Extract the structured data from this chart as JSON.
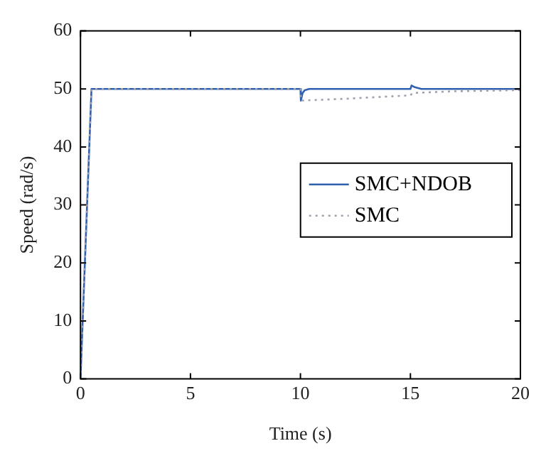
{
  "chart_data": {
    "type": "line",
    "xlabel": "Time (s)",
    "ylabel": "Speed (rad/s)",
    "xlim": [
      0,
      20
    ],
    "xticks": [
      0,
      5,
      10,
      15,
      20
    ],
    "ylim": [
      0,
      60
    ],
    "yticks": [
      0,
      10,
      20,
      30,
      40,
      50,
      60
    ],
    "grid": false,
    "legend": "right",
    "marker": "none",
    "series": [
      {
        "name": "SMC+NDOB",
        "color": "#3060b0",
        "line_style": "solid",
        "x": [
          0,
          0.5,
          10,
          10.02,
          10.1,
          10.2,
          10.4,
          15,
          15.05,
          15.2,
          15.5,
          20
        ],
        "values": [
          0,
          50,
          50,
          48,
          49.3,
          49.8,
          50,
          50,
          50.6,
          50.3,
          50,
          50
        ]
      },
      {
        "name": "SMC",
        "color": "#a0a0b0",
        "line_style": "dotted",
        "x": [
          0,
          0.5,
          10,
          10.03,
          12,
          15,
          15.1,
          17,
          20
        ],
        "values": [
          0,
          50,
          50,
          48,
          48.3,
          48.9,
          49.3,
          49.6,
          49.8
        ]
      }
    ]
  }
}
